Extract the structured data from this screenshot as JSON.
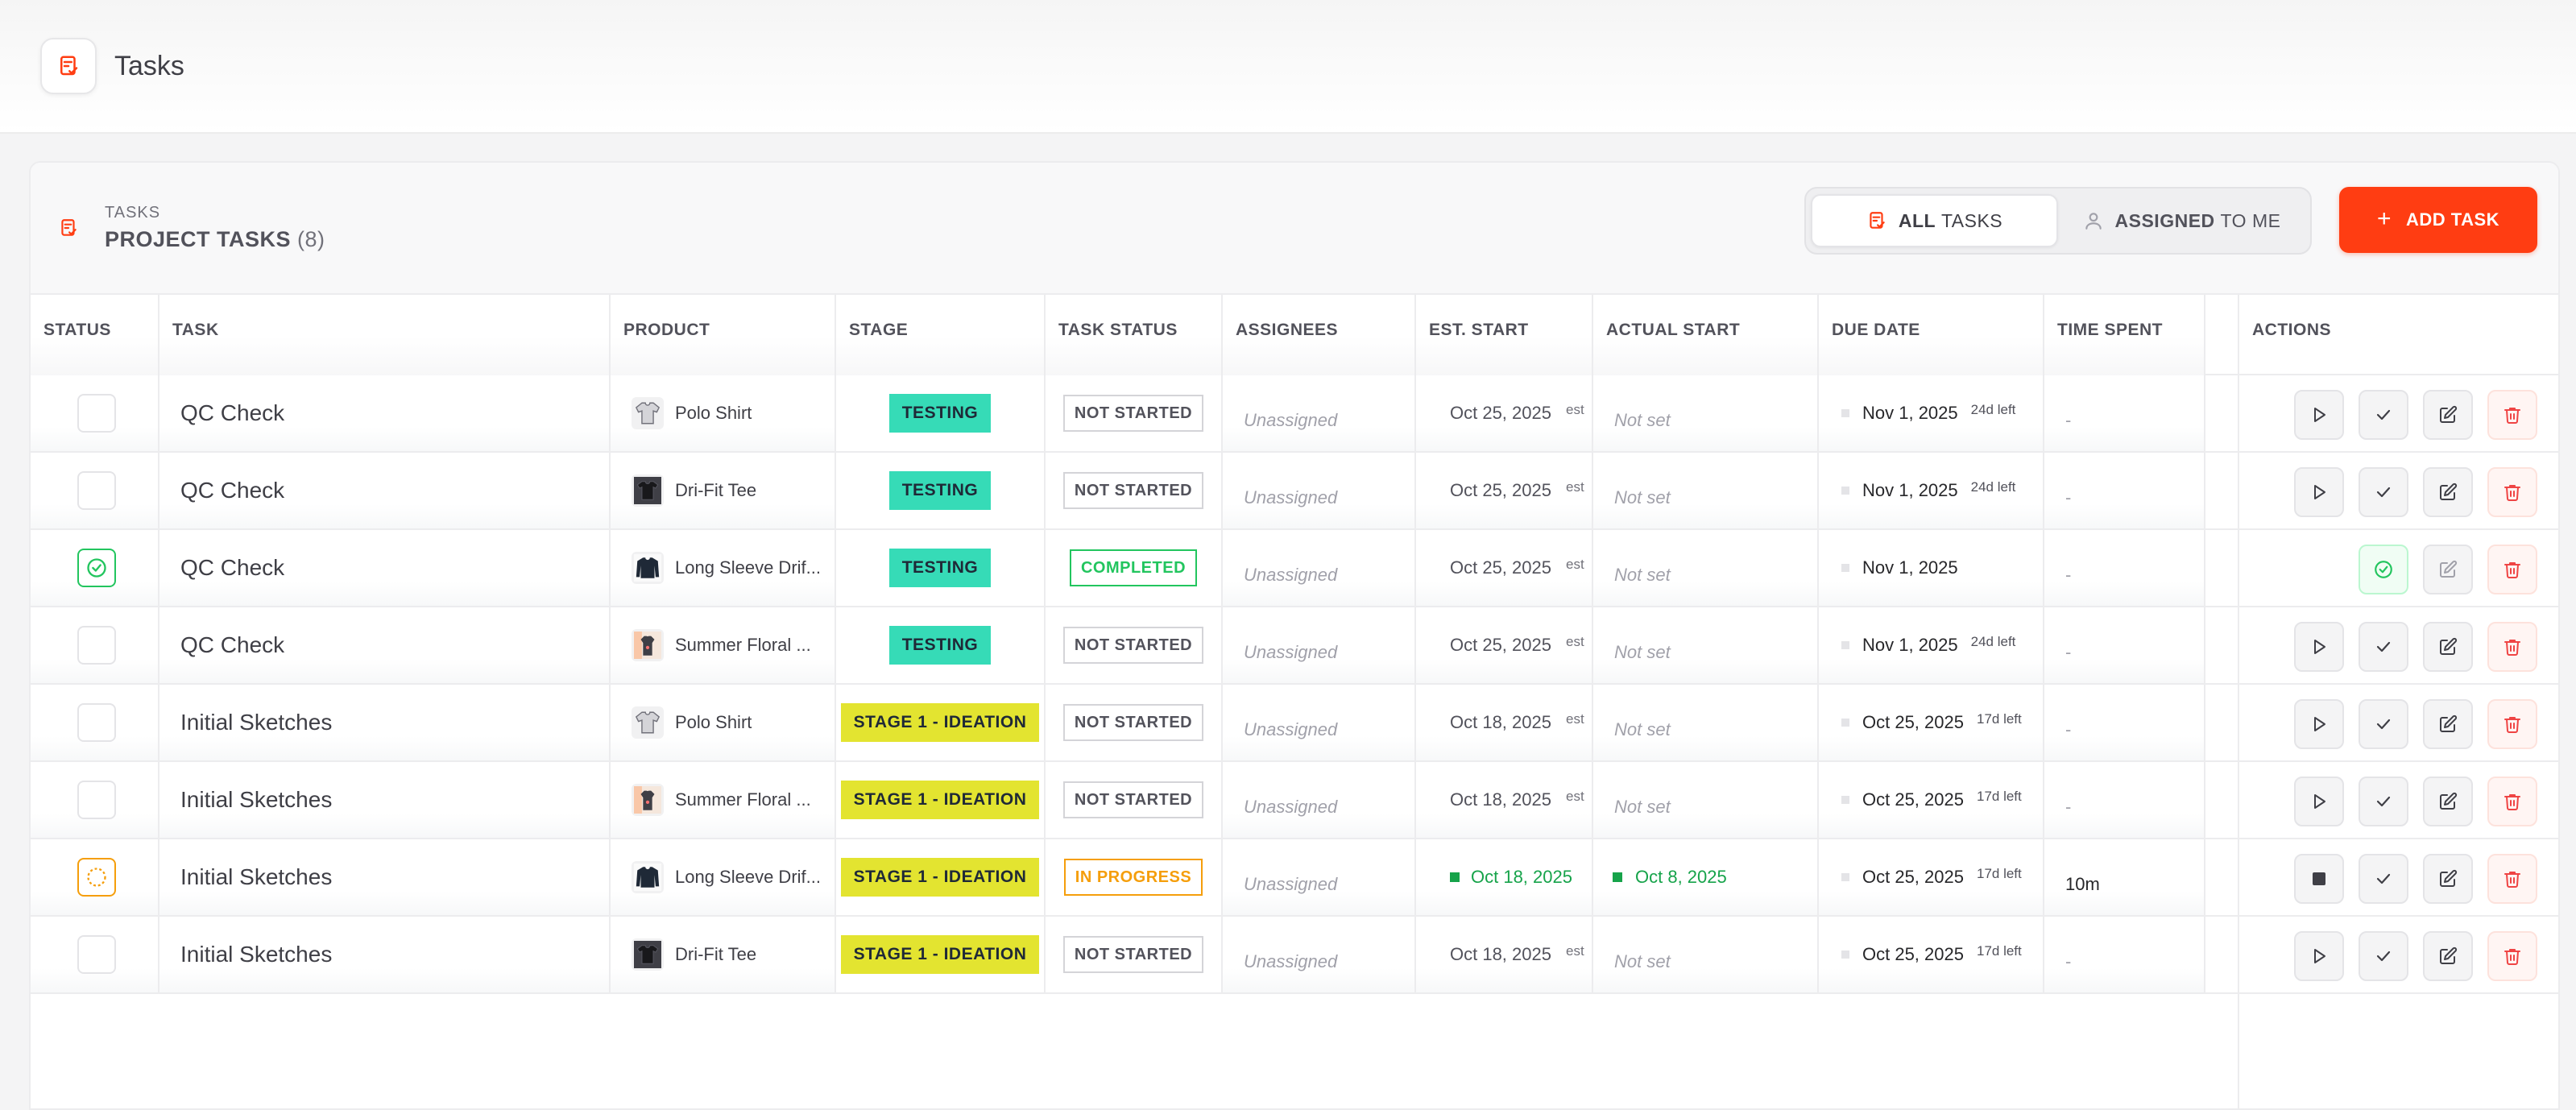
{
  "topbar": {
    "title": "Tasks"
  },
  "panel": {
    "eyebrow": "TASKS",
    "title": "PROJECT TASKS",
    "count": "(8)",
    "tabs": {
      "all_a": "ALL",
      "all_b": "TASKS",
      "mine_a": "ASSIGNED",
      "mine_b": "TO ME"
    },
    "add_label": "ADD TASK"
  },
  "columns": {
    "status": "STATUS",
    "task": "TASK",
    "product": "PRODUCT",
    "stage": "STAGE",
    "task_status": "TASK STATUS",
    "assignees": "ASSIGNEES",
    "est_start": "EST. START",
    "actual_start": "ACTUAL START",
    "due_date": "DUE DATE",
    "time_spent": "TIME SPENT",
    "actions": "ACTIONS"
  },
  "rows": [
    {
      "task": "QC Check",
      "product": "Polo Shirt",
      "stage": "TESTING",
      "task_status": "NOT STARTED",
      "assignee": "Unassigned",
      "est": "Oct 25, 2025",
      "est_tag": "est",
      "actual": "Not set",
      "due": "Nov 1, 2025",
      "left": "24d left",
      "spent": "-"
    },
    {
      "task": "QC Check",
      "product": "Dri-Fit Tee",
      "stage": "TESTING",
      "task_status": "NOT STARTED",
      "assignee": "Unassigned",
      "est": "Oct 25, 2025",
      "est_tag": "est",
      "actual": "Not set",
      "due": "Nov 1, 2025",
      "left": "24d left",
      "spent": "-"
    },
    {
      "task": "QC Check",
      "product": "Long Sleeve Drif...",
      "stage": "TESTING",
      "task_status": "COMPLETED",
      "assignee": "Unassigned",
      "est": "Oct 25, 2025",
      "est_tag": "est",
      "actual": "Not set",
      "due": "Nov 1, 2025",
      "left": "",
      "spent": "-"
    },
    {
      "task": "QC Check",
      "product": "Summer Floral ...",
      "stage": "TESTING",
      "task_status": "NOT STARTED",
      "assignee": "Unassigned",
      "est": "Oct 25, 2025",
      "est_tag": "est",
      "actual": "Not set",
      "due": "Nov 1, 2025",
      "left": "24d left",
      "spent": "-"
    },
    {
      "task": "Initial Sketches",
      "product": "Polo Shirt",
      "stage": "STAGE 1 - IDEATION",
      "task_status": "NOT STARTED",
      "assignee": "Unassigned",
      "est": "Oct 18, 2025",
      "est_tag": "est",
      "actual": "Not set",
      "due": "Oct 25, 2025",
      "left": "17d left",
      "spent": "-"
    },
    {
      "task": "Initial Sketches",
      "product": "Summer Floral ...",
      "stage": "STAGE 1 - IDEATION",
      "task_status": "NOT STARTED",
      "assignee": "Unassigned",
      "est": "Oct 18, 2025",
      "est_tag": "est",
      "actual": "Not set",
      "due": "Oct 25, 2025",
      "left": "17d left",
      "spent": "-"
    },
    {
      "task": "Initial Sketches",
      "product": "Long Sleeve Drif...",
      "stage": "STAGE 1 - IDEATION",
      "task_status": "IN PROGRESS",
      "assignee": "Unassigned",
      "est": "Oct 18, 2025",
      "est_tag": "",
      "actual": "Oct 8, 2025",
      "due": "Oct 25, 2025",
      "left": "17d left",
      "spent": "10m"
    },
    {
      "task": "Initial Sketches",
      "product": "Dri-Fit Tee",
      "stage": "STAGE 1 - IDEATION",
      "task_status": "NOT STARTED",
      "assignee": "Unassigned",
      "est": "Oct 18, 2025",
      "est_tag": "est",
      "actual": "Not set",
      "due": "Oct 25, 2025",
      "left": "17d left",
      "spent": "-"
    }
  ],
  "colors": {
    "accent": "#ff3d12",
    "testing": "#36dbb7",
    "ideation": "#e3e430",
    "completed": "#22c55e",
    "in_progress": "#f59e0b"
  }
}
